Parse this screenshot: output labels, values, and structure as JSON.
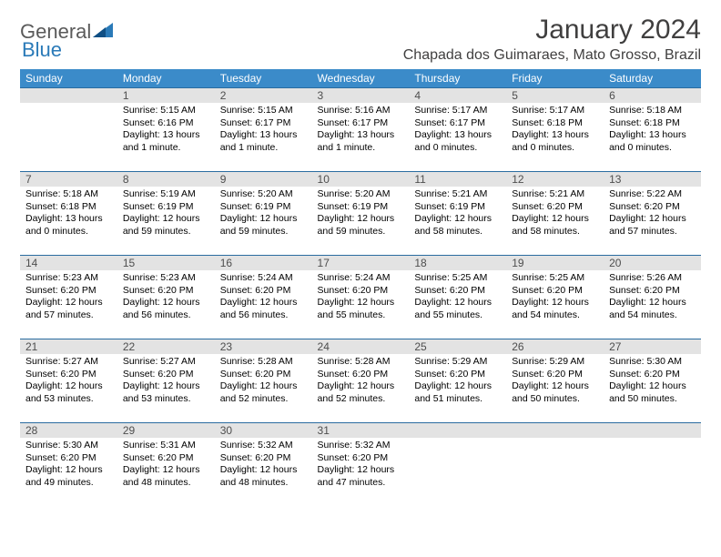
{
  "logo": {
    "text1": "General",
    "text2": "Blue"
  },
  "title": "January 2024",
  "location": "Chapada dos Guimaraes, Mato Grosso, Brazil",
  "colors": {
    "header_bg": "#3b8bc9",
    "header_text": "#ffffff",
    "daynum_bg": "#e3e3e3",
    "border": "#2a6ca0",
    "logo_gray": "#5a5a5a",
    "logo_blue": "#2a7ab8"
  },
  "weekdays": [
    "Sunday",
    "Monday",
    "Tuesday",
    "Wednesday",
    "Thursday",
    "Friday",
    "Saturday"
  ],
  "cells": [
    {
      "day": "",
      "sunrise": "",
      "sunset": "",
      "daylight": ""
    },
    {
      "day": "1",
      "sunrise": "Sunrise: 5:15 AM",
      "sunset": "Sunset: 6:16 PM",
      "daylight": "Daylight: 13 hours and 1 minute."
    },
    {
      "day": "2",
      "sunrise": "Sunrise: 5:15 AM",
      "sunset": "Sunset: 6:17 PM",
      "daylight": "Daylight: 13 hours and 1 minute."
    },
    {
      "day": "3",
      "sunrise": "Sunrise: 5:16 AM",
      "sunset": "Sunset: 6:17 PM",
      "daylight": "Daylight: 13 hours and 1 minute."
    },
    {
      "day": "4",
      "sunrise": "Sunrise: 5:17 AM",
      "sunset": "Sunset: 6:17 PM",
      "daylight": "Daylight: 13 hours and 0 minutes."
    },
    {
      "day": "5",
      "sunrise": "Sunrise: 5:17 AM",
      "sunset": "Sunset: 6:18 PM",
      "daylight": "Daylight: 13 hours and 0 minutes."
    },
    {
      "day": "6",
      "sunrise": "Sunrise: 5:18 AM",
      "sunset": "Sunset: 6:18 PM",
      "daylight": "Daylight: 13 hours and 0 minutes."
    },
    {
      "day": "7",
      "sunrise": "Sunrise: 5:18 AM",
      "sunset": "Sunset: 6:18 PM",
      "daylight": "Daylight: 13 hours and 0 minutes."
    },
    {
      "day": "8",
      "sunrise": "Sunrise: 5:19 AM",
      "sunset": "Sunset: 6:19 PM",
      "daylight": "Daylight: 12 hours and 59 minutes."
    },
    {
      "day": "9",
      "sunrise": "Sunrise: 5:20 AM",
      "sunset": "Sunset: 6:19 PM",
      "daylight": "Daylight: 12 hours and 59 minutes."
    },
    {
      "day": "10",
      "sunrise": "Sunrise: 5:20 AM",
      "sunset": "Sunset: 6:19 PM",
      "daylight": "Daylight: 12 hours and 59 minutes."
    },
    {
      "day": "11",
      "sunrise": "Sunrise: 5:21 AM",
      "sunset": "Sunset: 6:19 PM",
      "daylight": "Daylight: 12 hours and 58 minutes."
    },
    {
      "day": "12",
      "sunrise": "Sunrise: 5:21 AM",
      "sunset": "Sunset: 6:20 PM",
      "daylight": "Daylight: 12 hours and 58 minutes."
    },
    {
      "day": "13",
      "sunrise": "Sunrise: 5:22 AM",
      "sunset": "Sunset: 6:20 PM",
      "daylight": "Daylight: 12 hours and 57 minutes."
    },
    {
      "day": "14",
      "sunrise": "Sunrise: 5:23 AM",
      "sunset": "Sunset: 6:20 PM",
      "daylight": "Daylight: 12 hours and 57 minutes."
    },
    {
      "day": "15",
      "sunrise": "Sunrise: 5:23 AM",
      "sunset": "Sunset: 6:20 PM",
      "daylight": "Daylight: 12 hours and 56 minutes."
    },
    {
      "day": "16",
      "sunrise": "Sunrise: 5:24 AM",
      "sunset": "Sunset: 6:20 PM",
      "daylight": "Daylight: 12 hours and 56 minutes."
    },
    {
      "day": "17",
      "sunrise": "Sunrise: 5:24 AM",
      "sunset": "Sunset: 6:20 PM",
      "daylight": "Daylight: 12 hours and 55 minutes."
    },
    {
      "day": "18",
      "sunrise": "Sunrise: 5:25 AM",
      "sunset": "Sunset: 6:20 PM",
      "daylight": "Daylight: 12 hours and 55 minutes."
    },
    {
      "day": "19",
      "sunrise": "Sunrise: 5:25 AM",
      "sunset": "Sunset: 6:20 PM",
      "daylight": "Daylight: 12 hours and 54 minutes."
    },
    {
      "day": "20",
      "sunrise": "Sunrise: 5:26 AM",
      "sunset": "Sunset: 6:20 PM",
      "daylight": "Daylight: 12 hours and 54 minutes."
    },
    {
      "day": "21",
      "sunrise": "Sunrise: 5:27 AM",
      "sunset": "Sunset: 6:20 PM",
      "daylight": "Daylight: 12 hours and 53 minutes."
    },
    {
      "day": "22",
      "sunrise": "Sunrise: 5:27 AM",
      "sunset": "Sunset: 6:20 PM",
      "daylight": "Daylight: 12 hours and 53 minutes."
    },
    {
      "day": "23",
      "sunrise": "Sunrise: 5:28 AM",
      "sunset": "Sunset: 6:20 PM",
      "daylight": "Daylight: 12 hours and 52 minutes."
    },
    {
      "day": "24",
      "sunrise": "Sunrise: 5:28 AM",
      "sunset": "Sunset: 6:20 PM",
      "daylight": "Daylight: 12 hours and 52 minutes."
    },
    {
      "day": "25",
      "sunrise": "Sunrise: 5:29 AM",
      "sunset": "Sunset: 6:20 PM",
      "daylight": "Daylight: 12 hours and 51 minutes."
    },
    {
      "day": "26",
      "sunrise": "Sunrise: 5:29 AM",
      "sunset": "Sunset: 6:20 PM",
      "daylight": "Daylight: 12 hours and 50 minutes."
    },
    {
      "day": "27",
      "sunrise": "Sunrise: 5:30 AM",
      "sunset": "Sunset: 6:20 PM",
      "daylight": "Daylight: 12 hours and 50 minutes."
    },
    {
      "day": "28",
      "sunrise": "Sunrise: 5:30 AM",
      "sunset": "Sunset: 6:20 PM",
      "daylight": "Daylight: 12 hours and 49 minutes."
    },
    {
      "day": "29",
      "sunrise": "Sunrise: 5:31 AM",
      "sunset": "Sunset: 6:20 PM",
      "daylight": "Daylight: 12 hours and 48 minutes."
    },
    {
      "day": "30",
      "sunrise": "Sunrise: 5:32 AM",
      "sunset": "Sunset: 6:20 PM",
      "daylight": "Daylight: 12 hours and 48 minutes."
    },
    {
      "day": "31",
      "sunrise": "Sunrise: 5:32 AM",
      "sunset": "Sunset: 6:20 PM",
      "daylight": "Daylight: 12 hours and 47 minutes."
    },
    {
      "day": "",
      "sunrise": "",
      "sunset": "",
      "daylight": ""
    },
    {
      "day": "",
      "sunrise": "",
      "sunset": "",
      "daylight": ""
    },
    {
      "day": "",
      "sunrise": "",
      "sunset": "",
      "daylight": ""
    }
  ]
}
